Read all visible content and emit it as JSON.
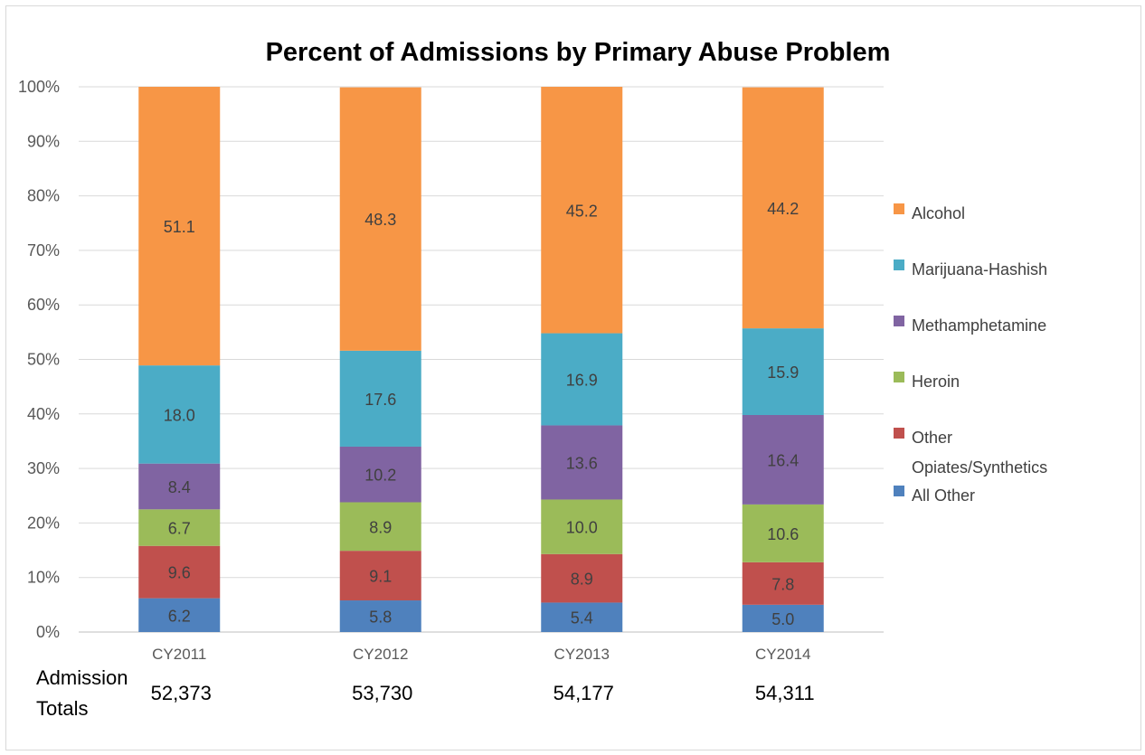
{
  "chart_data": {
    "type": "bar",
    "stacked": true,
    "title": "Percent of Admissions by Primary Abuse Problem",
    "categories": [
      "CY2011",
      "CY2012",
      "CY2013",
      "CY2014"
    ],
    "ylim": [
      0,
      100
    ],
    "yticks": [
      "0%",
      "10%",
      "20%",
      "30%",
      "40%",
      "50%",
      "60%",
      "70%",
      "80%",
      "90%",
      "100%"
    ],
    "grid": true,
    "legend_position": "right",
    "series": [
      {
        "name": "All Other",
        "color": "#4f81bd",
        "values": [
          6.2,
          5.8,
          5.4,
          5.0
        ]
      },
      {
        "name": "Other Opiates/Synthetics",
        "color": "#c0504d",
        "values": [
          9.6,
          9.1,
          8.9,
          7.8
        ]
      },
      {
        "name": "Heroin",
        "color": "#9bbb59",
        "values": [
          6.7,
          8.9,
          10.0,
          10.6
        ]
      },
      {
        "name": "Methamphetamine",
        "color": "#8064a2",
        "values": [
          8.4,
          10.2,
          13.6,
          16.4
        ]
      },
      {
        "name": "Marijuana-Hashish",
        "color": "#4bacc6",
        "values": [
          18.0,
          17.6,
          16.9,
          15.9
        ]
      },
      {
        "name": "Alcohol",
        "color": "#f79646",
        "values": [
          51.1,
          48.3,
          45.2,
          44.2
        ]
      }
    ],
    "value_labels": [
      [
        "6.2",
        "5.8",
        "5.4",
        "5.0"
      ],
      [
        "9.6",
        "9.1",
        "8.9",
        "7.8"
      ],
      [
        "6.7",
        "8.9",
        "10.0",
        "10.6"
      ],
      [
        "8.4",
        "10.2",
        "13.6",
        "16.4"
      ],
      [
        "18.0",
        "17.6",
        "16.9",
        "15.9"
      ],
      [
        "51.1",
        "48.3",
        "45.2",
        "44.2"
      ]
    ],
    "legend": [
      {
        "lines": [
          "Alcohol"
        ],
        "color": "#f79646"
      },
      {
        "lines": [
          "Marijuana-Hashish"
        ],
        "color": "#4bacc6"
      },
      {
        "lines": [
          "Methamphetamine"
        ],
        "color": "#8064a2"
      },
      {
        "lines": [
          "Heroin"
        ],
        "color": "#9bbb59"
      },
      {
        "lines": [
          "Other",
          "Opiates/Synthetics"
        ],
        "color": "#c0504d"
      },
      {
        "lines": [
          "All Other"
        ],
        "color": "#4f81bd"
      }
    ]
  },
  "admission_totals": {
    "label_line1": "Admission",
    "label_line2": "Totals",
    "values": [
      "52,373",
      "53,730",
      "54,177",
      "54,311"
    ]
  }
}
